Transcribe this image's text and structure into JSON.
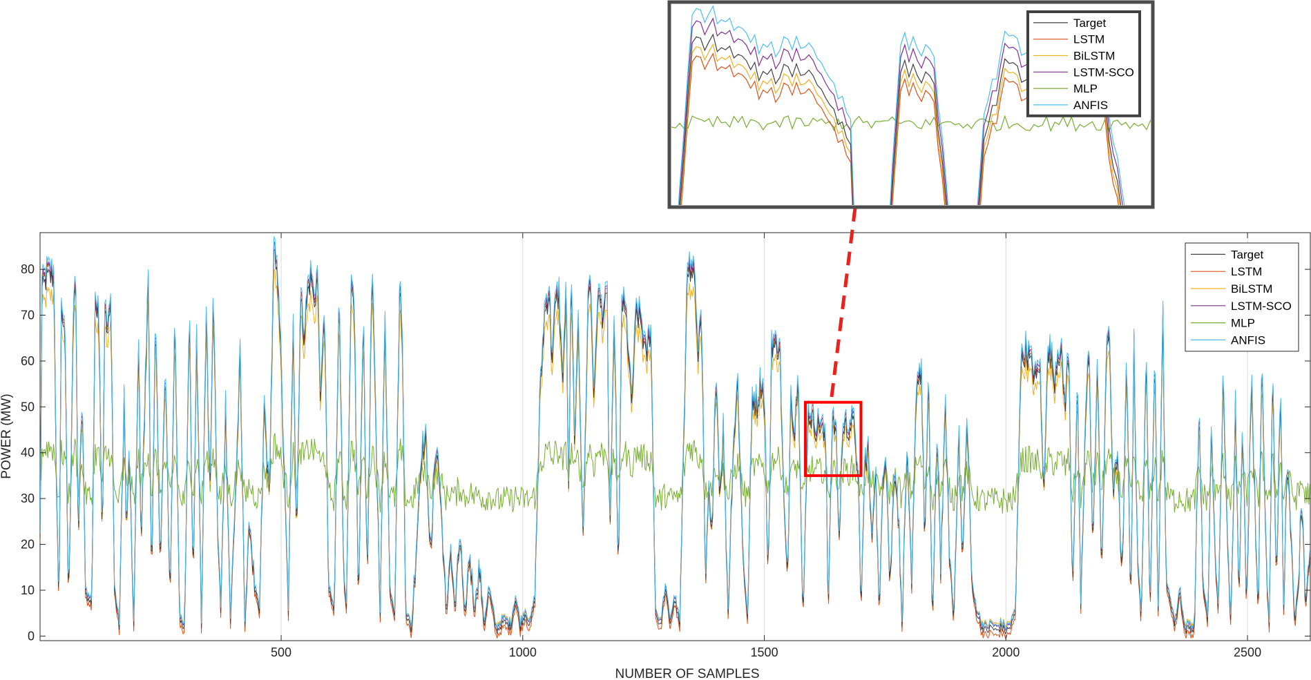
{
  "chart_data": {
    "type": "line",
    "title": "",
    "xlabel": "NUMBER OF SAMPLES",
    "ylabel": "POWER (MW)",
    "xlim": [
      1,
      2630
    ],
    "ylim": [
      -1,
      88
    ],
    "xticks": [
      500,
      1000,
      1500,
      2000,
      2500
    ],
    "yticks": [
      0,
      10,
      20,
      30,
      40,
      50,
      60,
      70,
      80
    ],
    "grid": "x",
    "legend_position": "top-right",
    "series": [
      {
        "name": "Target",
        "color": "#404040"
      },
      {
        "name": "LSTM",
        "color": "#D95319"
      },
      {
        "name": "BiLSTM",
        "color": "#EDB120"
      },
      {
        "name": "LSTM-SCO",
        "color": "#7E2F8E"
      },
      {
        "name": "MLP",
        "color": "#77AC30"
      },
      {
        "name": "ANFIS",
        "color": "#4DBEEE"
      }
    ],
    "target_profile": [
      [
        1,
        20
      ],
      [
        5,
        75
      ],
      [
        15,
        78
      ],
      [
        30,
        78
      ],
      [
        35,
        30
      ],
      [
        40,
        5
      ],
      [
        45,
        70
      ],
      [
        52,
        68
      ],
      [
        60,
        5
      ],
      [
        70,
        72
      ],
      [
        75,
        74
      ],
      [
        80,
        20
      ],
      [
        88,
        52
      ],
      [
        95,
        10
      ],
      [
        100,
        8
      ],
      [
        108,
        7
      ],
      [
        115,
        70
      ],
      [
        122,
        74
      ],
      [
        130,
        20
      ],
      [
        135,
        72
      ],
      [
        140,
        65
      ],
      [
        148,
        72
      ],
      [
        155,
        10
      ],
      [
        165,
        2
      ],
      [
        175,
        52
      ],
      [
        180,
        20
      ],
      [
        185,
        40
      ],
      [
        195,
        2
      ],
      [
        205,
        65
      ],
      [
        210,
        20
      ],
      [
        225,
        78
      ],
      [
        232,
        10
      ],
      [
        240,
        68
      ],
      [
        250,
        15
      ],
      [
        260,
        58
      ],
      [
        270,
        8
      ],
      [
        280,
        70
      ],
      [
        290,
        3
      ],
      [
        300,
        1
      ],
      [
        310,
        72
      ],
      [
        318,
        10
      ],
      [
        325,
        68
      ],
      [
        335,
        2
      ],
      [
        345,
        72
      ],
      [
        352,
        30
      ],
      [
        360,
        74
      ],
      [
        368,
        25
      ],
      [
        375,
        5
      ],
      [
        385,
        50
      ],
      [
        395,
        3
      ],
      [
        408,
        38
      ],
      [
        415,
        60
      ],
      [
        425,
        3
      ],
      [
        435,
        25
      ],
      [
        445,
        10
      ],
      [
        455,
        5
      ],
      [
        465,
        50
      ],
      [
        475,
        30
      ],
      [
        485,
        83
      ],
      [
        495,
        75
      ],
      [
        505,
        40
      ],
      [
        515,
        5
      ],
      [
        525,
        70
      ],
      [
        532,
        20
      ],
      [
        540,
        74
      ],
      [
        548,
        65
      ],
      [
        555,
        75
      ],
      [
        562,
        78
      ],
      [
        568,
        72
      ],
      [
        575,
        78
      ],
      [
        582,
        50
      ],
      [
        590,
        72
      ],
      [
        598,
        10
      ],
      [
        610,
        5
      ],
      [
        620,
        78
      ],
      [
        628,
        20
      ],
      [
        635,
        5
      ],
      [
        645,
        75
      ],
      [
        652,
        68
      ],
      [
        660,
        5
      ],
      [
        670,
        72
      ],
      [
        678,
        10
      ],
      [
        688,
        80
      ],
      [
        695,
        50
      ],
      [
        705,
        5
      ],
      [
        715,
        70
      ],
      [
        725,
        10
      ],
      [
        735,
        5
      ],
      [
        745,
        74
      ],
      [
        750,
        70
      ],
      [
        758,
        5
      ],
      [
        770,
        1
      ],
      [
        780,
        20
      ],
      [
        790,
        40
      ],
      [
        800,
        42
      ],
      [
        810,
        15
      ],
      [
        818,
        40
      ],
      [
        825,
        38
      ],
      [
        835,
        20
      ],
      [
        842,
        3
      ],
      [
        850,
        20
      ],
      [
        860,
        5
      ],
      [
        870,
        22
      ],
      [
        880,
        3
      ],
      [
        890,
        18
      ],
      [
        900,
        5
      ],
      [
        910,
        15
      ],
      [
        920,
        2
      ],
      [
        930,
        10
      ],
      [
        945,
        1
      ],
      [
        960,
        3
      ],
      [
        975,
        2
      ],
      [
        985,
        8
      ],
      [
        995,
        2
      ],
      [
        1005,
        5
      ],
      [
        1015,
        2
      ],
      [
        1025,
        8
      ],
      [
        1035,
        50
      ],
      [
        1045,
        70
      ],
      [
        1055,
        75
      ],
      [
        1060,
        60
      ],
      [
        1068,
        72
      ],
      [
        1075,
        74
      ],
      [
        1082,
        55
      ],
      [
        1090,
        75
      ],
      [
        1095,
        30
      ],
      [
        1100,
        78
      ],
      [
        1108,
        40
      ],
      [
        1115,
        70
      ],
      [
        1125,
        20
      ],
      [
        1135,
        72
      ],
      [
        1140,
        78
      ],
      [
        1148,
        50
      ],
      [
        1155,
        74
      ],
      [
        1165,
        70
      ],
      [
        1175,
        73
      ],
      [
        1180,
        20
      ],
      [
        1190,
        70
      ],
      [
        1198,
        10
      ],
      [
        1205,
        73
      ],
      [
        1215,
        68
      ],
      [
        1225,
        50
      ],
      [
        1235,
        70
      ],
      [
        1245,
        68
      ],
      [
        1255,
        60
      ],
      [
        1265,
        67
      ],
      [
        1275,
        5
      ],
      [
        1285,
        2
      ],
      [
        1295,
        10
      ],
      [
        1305,
        3
      ],
      [
        1315,
        8
      ],
      [
        1325,
        2
      ],
      [
        1335,
        50
      ],
      [
        1340,
        82
      ],
      [
        1348,
        78
      ],
      [
        1355,
        80
      ],
      [
        1362,
        60
      ],
      [
        1370,
        72
      ],
      [
        1378,
        10
      ],
      [
        1385,
        30
      ],
      [
        1392,
        20
      ],
      [
        1400,
        60
      ],
      [
        1408,
        30
      ],
      [
        1415,
        45
      ],
      [
        1425,
        5
      ],
      [
        1435,
        40
      ],
      [
        1445,
        55
      ],
      [
        1455,
        20
      ],
      [
        1465,
        3
      ],
      [
        1475,
        52
      ],
      [
        1485,
        50
      ],
      [
        1492,
        55
      ],
      [
        1500,
        52
      ],
      [
        1508,
        10
      ],
      [
        1515,
        64
      ],
      [
        1525,
        62
      ],
      [
        1532,
        64
      ],
      [
        1540,
        30
      ],
      [
        1548,
        10
      ],
      [
        1555,
        55
      ],
      [
        1562,
        42
      ],
      [
        1570,
        60
      ],
      [
        1580,
        2
      ],
      [
        1590,
        48
      ],
      [
        1595,
        48
      ],
      [
        1600,
        47
      ],
      [
        1608,
        45
      ],
      [
        1615,
        46
      ],
      [
        1620,
        45
      ],
      [
        1628,
        40
      ],
      [
        1632,
        5
      ],
      [
        1640,
        46
      ],
      [
        1648,
        45
      ],
      [
        1655,
        20
      ],
      [
        1660,
        40
      ],
      [
        1665,
        46
      ],
      [
        1672,
        45
      ],
      [
        1680,
        46
      ],
      [
        1688,
        45
      ],
      [
        1695,
        30
      ],
      [
        1700,
        5
      ],
      [
        1708,
        38
      ],
      [
        1715,
        40
      ],
      [
        1722,
        20
      ],
      [
        1730,
        38
      ],
      [
        1738,
        3
      ],
      [
        1745,
        35
      ],
      [
        1752,
        40
      ],
      [
        1760,
        10
      ],
      [
        1770,
        38
      ],
      [
        1778,
        25
      ],
      [
        1785,
        3
      ],
      [
        1795,
        40
      ],
      [
        1805,
        10
      ],
      [
        1815,
        55
      ],
      [
        1825,
        58
      ],
      [
        1832,
        20
      ],
      [
        1840,
        55
      ],
      [
        1848,
        2
      ],
      [
        1858,
        45
      ],
      [
        1865,
        15
      ],
      [
        1875,
        50
      ],
      [
        1882,
        20
      ],
      [
        1892,
        3
      ],
      [
        1902,
        45
      ],
      [
        1910,
        15
      ],
      [
        1920,
        48
      ],
      [
        1930,
        10
      ],
      [
        1940,
        5
      ],
      [
        1950,
        2
      ],
      [
        1960,
        1
      ],
      [
        1970,
        2
      ],
      [
        1980,
        1
      ],
      [
        1990,
        2
      ],
      [
        2000,
        1
      ],
      [
        2010,
        2
      ],
      [
        2020,
        5
      ],
      [
        2030,
        58
      ],
      [
        2040,
        62
      ],
      [
        2048,
        60
      ],
      [
        2055,
        58
      ],
      [
        2062,
        55
      ],
      [
        2070,
        60
      ],
      [
        2078,
        30
      ],
      [
        2085,
        58
      ],
      [
        2092,
        62
      ],
      [
        2100,
        55
      ],
      [
        2108,
        62
      ],
      [
        2115,
        60
      ],
      [
        2122,
        50
      ],
      [
        2130,
        62
      ],
      [
        2138,
        10
      ],
      [
        2148,
        55
      ],
      [
        2155,
        5
      ],
      [
        2165,
        48
      ],
      [
        2172,
        62
      ],
      [
        2180,
        20
      ],
      [
        2190,
        60
      ],
      [
        2198,
        10
      ],
      [
        2208,
        64
      ],
      [
        2215,
        62
      ],
      [
        2222,
        30
      ],
      [
        2232,
        40
      ],
      [
        2240,
        10
      ],
      [
        2250,
        60
      ],
      [
        2258,
        5
      ],
      [
        2265,
        62
      ],
      [
        2272,
        20
      ],
      [
        2280,
        2
      ],
      [
        2290,
        62
      ],
      [
        2298,
        5
      ],
      [
        2308,
        64
      ],
      [
        2315,
        5
      ],
      [
        2325,
        70
      ],
      [
        2332,
        10
      ],
      [
        2340,
        8
      ],
      [
        2350,
        2
      ],
      [
        2360,
        10
      ],
      [
        2370,
        1
      ],
      [
        2380,
        2
      ],
      [
        2390,
        1
      ],
      [
        2400,
        50
      ],
      [
        2408,
        10
      ],
      [
        2418,
        3
      ],
      [
        2425,
        45
      ],
      [
        2432,
        20
      ],
      [
        2440,
        5
      ],
      [
        2450,
        58
      ],
      [
        2458,
        20
      ],
      [
        2465,
        3
      ],
      [
        2475,
        50
      ],
      [
        2482,
        10
      ],
      [
        2490,
        45
      ],
      [
        2498,
        5
      ],
      [
        2508,
        58
      ],
      [
        2515,
        30
      ],
      [
        2522,
        5
      ],
      [
        2530,
        60
      ],
      [
        2538,
        20
      ],
      [
        2545,
        2
      ],
      [
        2552,
        60
      ],
      [
        2560,
        10
      ],
      [
        2568,
        55
      ],
      [
        2575,
        5
      ],
      [
        2582,
        40
      ],
      [
        2590,
        20
      ],
      [
        2598,
        3
      ],
      [
        2605,
        10
      ],
      [
        2612,
        30
      ],
      [
        2620,
        5
      ],
      [
        2630,
        20
      ]
    ],
    "annotations": [
      {
        "type": "zoom-box",
        "xlim": [
          1585,
          1700
        ],
        "ylim": [
          35,
          51
        ],
        "color": "#FF0000"
      },
      {
        "type": "inset",
        "xlim": [
          1585,
          1700
        ],
        "ylim": [
          35,
          51
        ],
        "legend_position": "top-right"
      }
    ]
  }
}
